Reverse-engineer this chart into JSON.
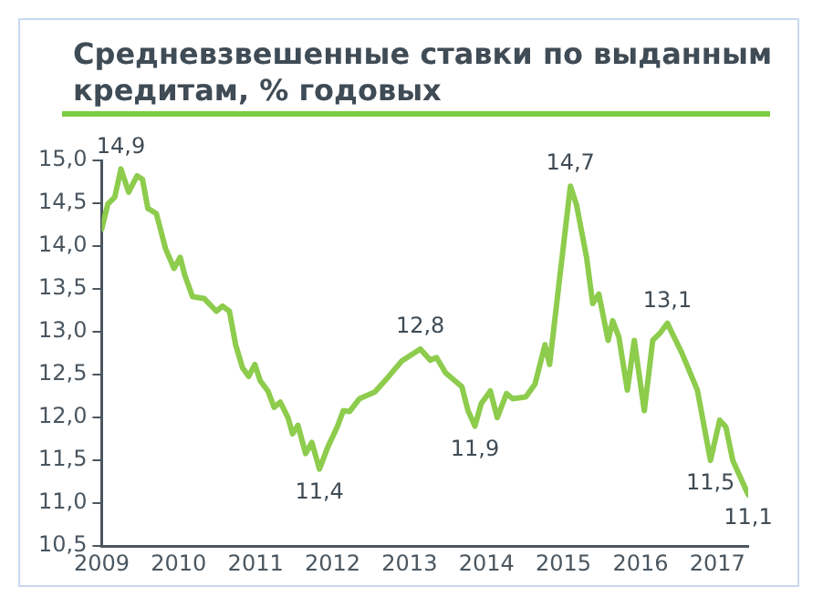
{
  "chart_data": {
    "type": "line",
    "title": "Средневзвешенные ставки по выданным кредитам, % годовых",
    "x": [
      2009.0,
      2009.08,
      2009.17,
      2009.25,
      2009.35,
      2009.46,
      2009.53,
      2009.6,
      2009.71,
      2009.83,
      2009.94,
      2010.02,
      2010.08,
      2010.18,
      2010.33,
      2010.49,
      2010.57,
      2010.66,
      2010.74,
      2010.83,
      2010.91,
      2010.99,
      2011.06,
      2011.16,
      2011.24,
      2011.32,
      2011.42,
      2011.48,
      2011.55,
      2011.65,
      2011.73,
      2011.83,
      2011.94,
      2012.06,
      2012.14,
      2012.22,
      2012.35,
      2012.55,
      2012.72,
      2012.9,
      2013.14,
      2013.27,
      2013.35,
      2013.47,
      2013.68,
      2013.76,
      2013.85,
      2013.93,
      2014.05,
      2014.14,
      2014.26,
      2014.34,
      2014.51,
      2014.63,
      2014.76,
      2014.82,
      2014.96,
      2015.09,
      2015.17,
      2015.3,
      2015.38,
      2015.46,
      2015.58,
      2015.64,
      2015.72,
      2015.83,
      2015.92,
      2016.05,
      2016.16,
      2016.25,
      2016.35,
      2016.54,
      2016.74,
      2016.91,
      2017.03,
      2017.11,
      2017.2,
      2017.4
    ],
    "series": [
      {
        "color": "#8dcc4c",
        "values": [
          14.2,
          14.49,
          14.57,
          14.9,
          14.63,
          14.82,
          14.78,
          14.44,
          14.38,
          13.97,
          13.74,
          13.87,
          13.66,
          13.41,
          13.39,
          13.24,
          13.3,
          13.24,
          12.85,
          12.58,
          12.48,
          12.62,
          12.43,
          12.31,
          12.12,
          12.18,
          12.0,
          11.81,
          11.91,
          11.58,
          11.71,
          11.4,
          11.66,
          11.89,
          12.08,
          12.07,
          12.22,
          12.3,
          12.47,
          12.66,
          12.8,
          12.67,
          12.7,
          12.52,
          12.36,
          12.08,
          11.9,
          12.16,
          12.31,
          12.0,
          12.28,
          12.22,
          12.24,
          12.39,
          12.85,
          12.62,
          13.7,
          14.7,
          14.48,
          13.87,
          13.33,
          13.44,
          12.9,
          13.13,
          12.94,
          12.32,
          12.9,
          12.08,
          12.9,
          12.98,
          13.1,
          12.75,
          12.32,
          11.5,
          11.97,
          11.89,
          11.5,
          11.1
        ]
      }
    ],
    "xlim": [
      2009,
      2017.4
    ],
    "xticks": [
      2009,
      2010,
      2011,
      2012,
      2013,
      2014,
      2015,
      2016,
      2017
    ],
    "ylim": [
      10.5,
      15.0
    ],
    "yticks": [
      {
        "value": 10.5,
        "label": "10,5"
      },
      {
        "value": 11,
        "label": "11,0"
      },
      {
        "value": 11.5,
        "label": "11,5"
      },
      {
        "value": 12,
        "label": "12,0"
      },
      {
        "value": 12.5,
        "label": "12,5"
      },
      {
        "value": 13,
        "label": "13,0"
      },
      {
        "value": 13.5,
        "label": "13,5"
      },
      {
        "value": 14,
        "label": "14,0"
      },
      {
        "value": 14.5,
        "label": "14,5"
      },
      {
        "value": 15,
        "label": "15,0"
      }
    ],
    "grid": false,
    "legend": false,
    "marker": "none",
    "line_style": "solid",
    "annotations": [
      {
        "text": "14,9",
        "x": 2009.25,
        "y": 14.9
      },
      {
        "text": "11,4",
        "x": 2011.83,
        "y": 11.4
      },
      {
        "text": "12,8",
        "x": 2013.14,
        "y": 12.8
      },
      {
        "text": "11,9",
        "x": 2013.85,
        "y": 11.9
      },
      {
        "text": "14,7",
        "x": 2015.09,
        "y": 14.7
      },
      {
        "text": "13,1",
        "x": 2016.35,
        "y": 13.1
      },
      {
        "text": "11,5",
        "x": 2016.91,
        "y": 11.5
      },
      {
        "text": "11,1",
        "x": 2017.4,
        "y": 11.1
      }
    ]
  }
}
